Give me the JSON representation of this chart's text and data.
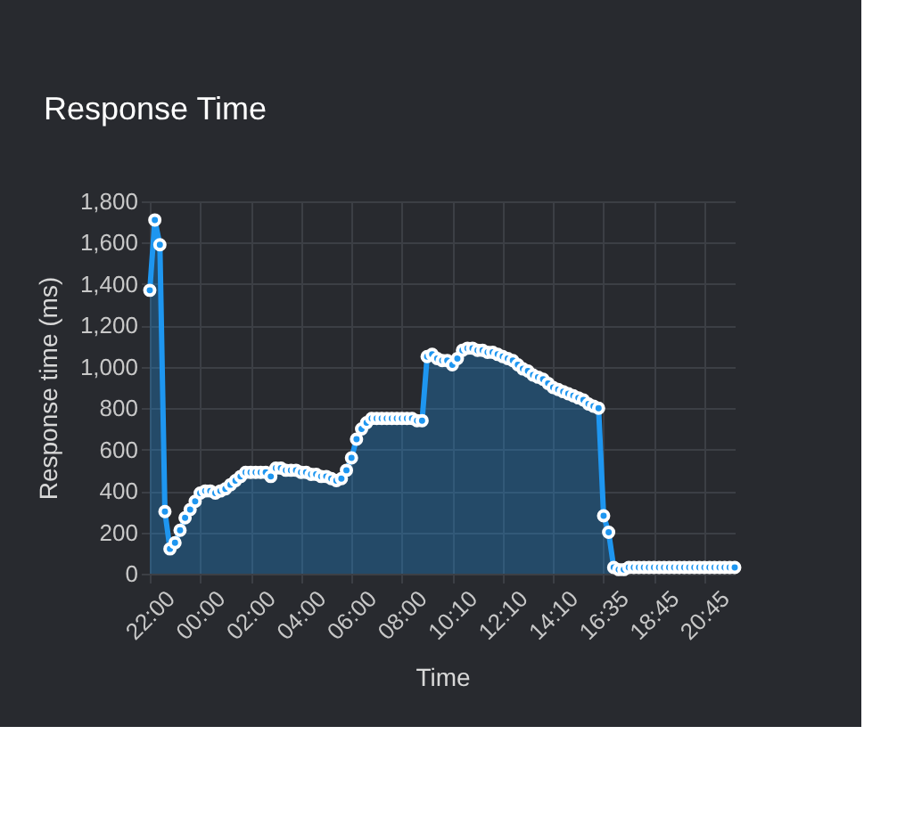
{
  "chart_data": {
    "type": "area",
    "title": "Response Time",
    "xlabel": "Time",
    "ylabel": "Response time (ms)",
    "categories": [
      "22:00",
      null,
      null,
      null,
      null,
      null,
      null,
      null,
      null,
      null,
      "00:00",
      null,
      null,
      null,
      null,
      null,
      null,
      null,
      null,
      null,
      "02:00",
      null,
      null,
      null,
      null,
      null,
      null,
      null,
      null,
      null,
      "04:00",
      null,
      null,
      null,
      null,
      null,
      null,
      null,
      null,
      null,
      "06:00",
      null,
      null,
      null,
      null,
      null,
      null,
      null,
      null,
      null,
      "08:00",
      null,
      null,
      null,
      null,
      null,
      null,
      null,
      null,
      null,
      "10:10",
      null,
      null,
      null,
      null,
      null,
      null,
      null,
      null,
      null,
      "12:10",
      null,
      null,
      null,
      null,
      null,
      null,
      null,
      null,
      null,
      "14:10",
      null,
      null,
      null,
      null,
      null,
      null,
      null,
      null,
      null,
      "16:35",
      null,
      null,
      null,
      null,
      null,
      null,
      null,
      null,
      null,
      "18:45",
      null,
      null,
      null,
      null,
      null,
      null,
      null,
      null,
      null,
      "20:45",
      null,
      null,
      null,
      null,
      null,
      null
    ],
    "series": [
      {
        "color": "#1e96f0",
        "values": [
          1370,
          1710,
          1590,
          300,
          120,
          150,
          210,
          270,
          310,
          350,
          390,
          400,
          400,
          390,
          400,
          410,
          430,
          450,
          470,
          490,
          490,
          490,
          490,
          490,
          470,
          510,
          510,
          500,
          500,
          500,
          490,
          490,
          480,
          480,
          470,
          470,
          460,
          450,
          460,
          500,
          560,
          650,
          700,
          730,
          750,
          750,
          750,
          750,
          750,
          750,
          750,
          750,
          750,
          740,
          740,
          1050,
          1060,
          1040,
          1030,
          1030,
          1010,
          1040,
          1080,
          1090,
          1090,
          1080,
          1080,
          1070,
          1070,
          1060,
          1050,
          1040,
          1030,
          1010,
          990,
          980,
          960,
          950,
          940,
          920,
          900,
          890,
          880,
          870,
          860,
          850,
          840,
          820,
          810,
          800,
          280,
          200,
          30,
          20,
          20,
          30,
          30,
          30,
          30,
          30,
          30,
          30,
          30,
          30,
          30,
          30,
          30,
          30,
          30,
          30,
          30,
          30,
          30,
          30,
          30,
          30,
          30
        ]
      }
    ],
    "ylim": [
      0,
      1800
    ],
    "yticks": [
      0,
      200,
      400,
      600,
      800,
      {
        "value": 1000,
        "label": "1,000"
      },
      {
        "value": 1200,
        "label": "1,200"
      },
      {
        "value": 1400,
        "label": "1,400"
      },
      {
        "value": 1600,
        "label": "1,600"
      },
      {
        "value": 1800,
        "label": "1,800"
      }
    ],
    "grid": true,
    "legend": false,
    "marker": "circle",
    "line_style": "solid"
  }
}
